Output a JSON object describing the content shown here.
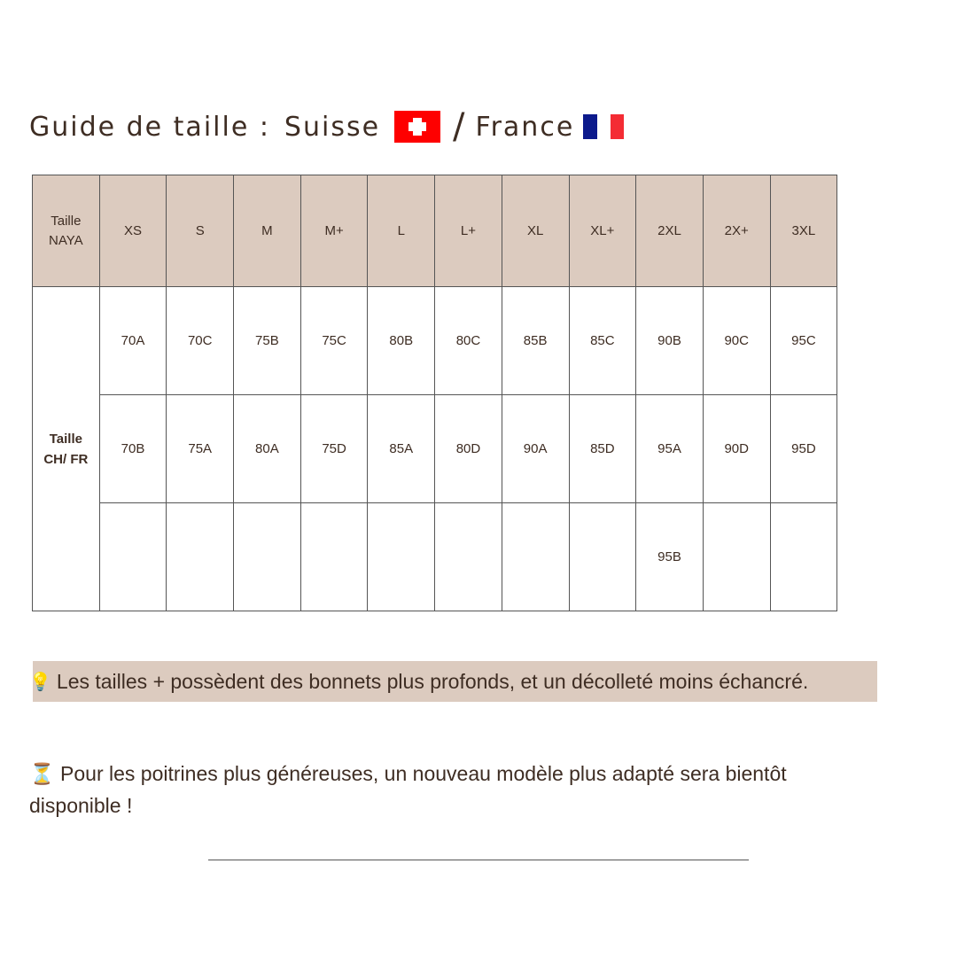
{
  "title": {
    "prefix": "Guide de taille :",
    "switzerland": "Suisse",
    "separator": "/",
    "france": "France",
    "flag_colors": {
      "swiss_red": "#fe0000",
      "france_blue": "#0c1a8c",
      "france_red": "#f42c34"
    }
  },
  "table": {
    "header_label": [
      "Taille",
      "NAYA"
    ],
    "sizes": [
      "XS",
      "S",
      "M",
      "M+",
      "L",
      "L+",
      "XL",
      "XL+",
      "2XL",
      "2X+",
      "3XL"
    ],
    "row_label": [
      "Taille",
      "CH/ FR"
    ],
    "rows": [
      [
        "70A",
        "70C",
        "75B",
        "75C",
        "80B",
        "80C",
        "85B",
        "85C",
        "90B",
        "90C",
        "95C"
      ],
      [
        "70B",
        "75A",
        "80A",
        "75D",
        "85A",
        "80D",
        "90A",
        "85D",
        "95A",
        "90D",
        "95D"
      ],
      [
        "",
        "",
        "",
        "",
        "",
        "",
        "",
        "",
        "95B",
        "",
        ""
      ]
    ],
    "header_bg": "#dccbbf"
  },
  "notes": [
    {
      "icon": "lightbulb-icon",
      "glyph": "💡",
      "text": "Les tailles + possèdent des bonnets plus profonds, et un décolleté moins échancré."
    },
    {
      "icon": "hourglass-icon",
      "glyph": "⏳",
      "text": "Pour les poitrines plus généreuses, un nouveau modèle plus adapté sera bientôt disponible !"
    }
  ]
}
